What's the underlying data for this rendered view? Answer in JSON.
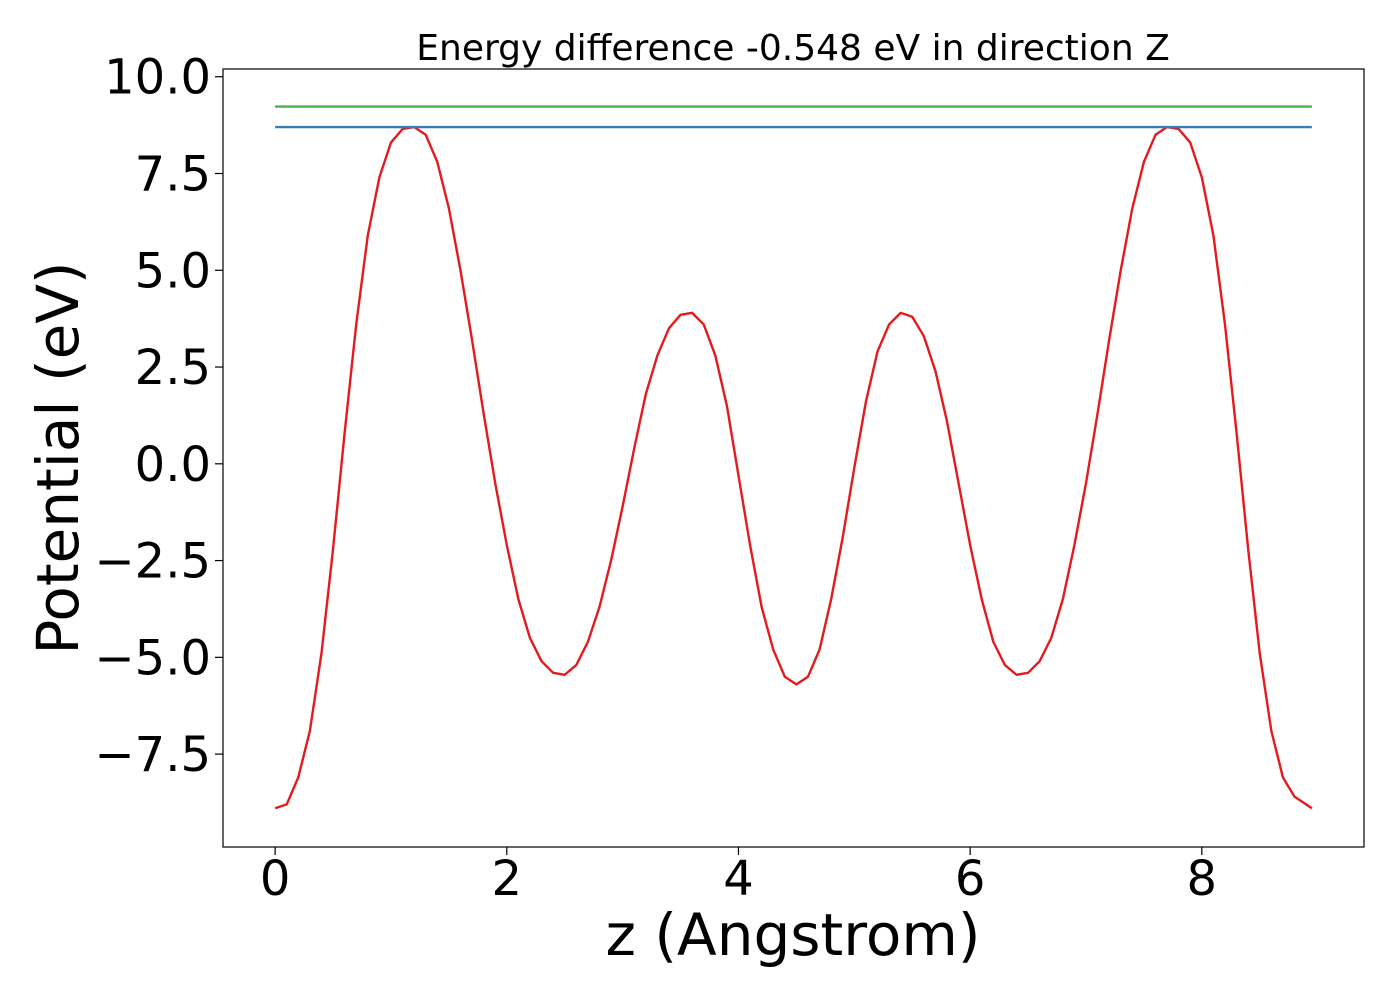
{
  "chart_data": {
    "type": "line",
    "title": "Energy difference -0.548 eV in direction Z",
    "xlabel": "z (Angstrom)",
    "ylabel": "Potential (eV)",
    "xlim": [
      -0.45,
      9.4
    ],
    "ylim": [
      -9.9,
      10.2
    ],
    "x_ticks": [
      0,
      2,
      4,
      6,
      8
    ],
    "x_tick_labels": [
      "0",
      "2",
      "4",
      "6",
      "8"
    ],
    "y_ticks": [
      -7.5,
      -5.0,
      -2.5,
      0.0,
      2.5,
      5.0,
      7.5,
      10.0
    ],
    "y_tick_labels": [
      "−7.5",
      "−5.0",
      "−2.5",
      "0.0",
      "2.5",
      "5.0",
      "7.5",
      "10.0"
    ],
    "grid": false,
    "series": [
      {
        "color": "#e41a1c",
        "x": [
          0.0,
          0.1,
          0.2,
          0.3,
          0.4,
          0.5,
          0.6,
          0.7,
          0.8,
          0.9,
          1.0,
          1.1,
          1.2,
          1.3,
          1.4,
          1.5,
          1.6,
          1.7,
          1.8,
          1.9,
          2.0,
          2.1,
          2.2,
          2.3,
          2.4,
          2.5,
          2.6,
          2.7,
          2.8,
          2.9,
          3.0,
          3.1,
          3.2,
          3.3,
          3.4,
          3.5,
          3.6,
          3.7,
          3.8,
          3.9,
          4.0,
          4.1,
          4.2,
          4.3,
          4.4,
          4.5,
          4.6,
          4.7,
          4.8,
          4.9,
          5.0,
          5.1,
          5.2,
          5.3,
          5.4,
          5.5,
          5.6,
          5.7,
          5.8,
          5.9,
          6.0,
          6.1,
          6.2,
          6.3,
          6.4,
          6.5,
          6.6,
          6.7,
          6.8,
          6.9,
          7.0,
          7.1,
          7.2,
          7.3,
          7.4,
          7.5,
          7.6,
          7.7,
          7.8,
          7.9,
          8.0,
          8.1,
          8.2,
          8.3,
          8.4,
          8.5,
          8.6,
          8.7,
          8.8,
          8.95
        ],
        "y": [
          -8.9,
          -8.8,
          -8.1,
          -6.9,
          -4.9,
          -2.2,
          0.8,
          3.6,
          5.9,
          7.4,
          8.3,
          8.65,
          8.7,
          8.5,
          7.8,
          6.6,
          5.0,
          3.2,
          1.3,
          -0.5,
          -2.1,
          -3.5,
          -4.5,
          -5.1,
          -5.4,
          -5.45,
          -5.2,
          -4.6,
          -3.7,
          -2.5,
          -1.1,
          0.4,
          1.8,
          2.8,
          3.5,
          3.85,
          3.9,
          3.6,
          2.8,
          1.5,
          -0.3,
          -2.1,
          -3.7,
          -4.8,
          -5.5,
          -5.7,
          -5.5,
          -4.8,
          -3.5,
          -1.9,
          -0.1,
          1.6,
          2.9,
          3.6,
          3.9,
          3.8,
          3.3,
          2.4,
          1.1,
          -0.5,
          -2.1,
          -3.5,
          -4.6,
          -5.2,
          -5.45,
          -5.4,
          -5.1,
          -4.5,
          -3.5,
          -2.1,
          -0.5,
          1.3,
          3.2,
          5.0,
          6.6,
          7.8,
          8.5,
          8.7,
          8.65,
          8.3,
          7.4,
          5.9,
          3.6,
          0.8,
          -2.2,
          -4.9,
          -6.9,
          -8.1,
          -8.6,
          -8.9
        ]
      },
      {
        "color": "#377eb8",
        "x": [
          0.0,
          8.95
        ],
        "y": [
          8.7,
          8.7
        ]
      },
      {
        "color": "#4daf4a",
        "x": [
          0.0,
          8.95
        ],
        "y": [
          9.23,
          9.23
        ]
      }
    ]
  }
}
